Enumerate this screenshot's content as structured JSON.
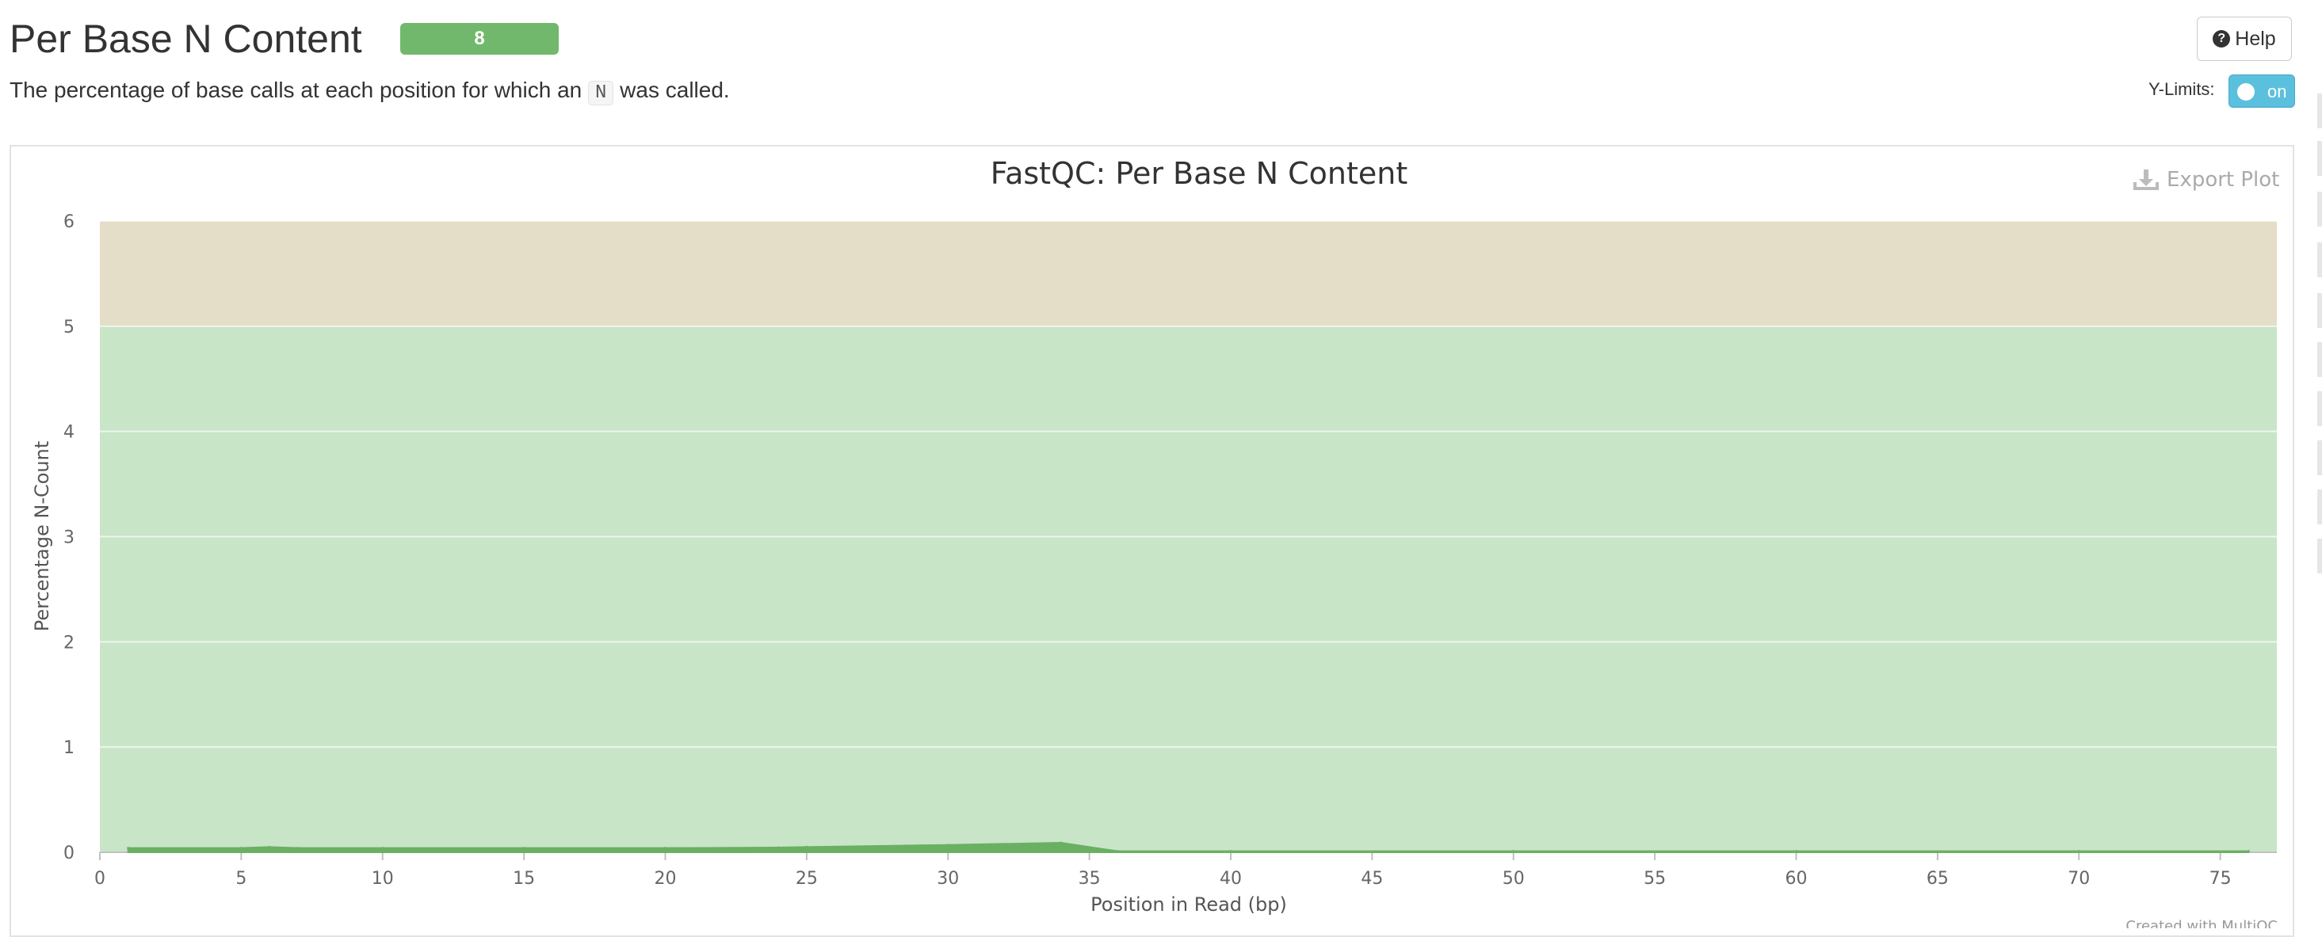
{
  "section": {
    "title": "Per Base N Content",
    "badge_count": "8",
    "description_before": "The percentage of base calls at each position for which an ",
    "description_code": "N",
    "description_after": " was called."
  },
  "controls": {
    "help_label": "Help",
    "ylimits_label": "Y-Limits:",
    "ylimits_toggle": "on",
    "export_label": "Export Plot"
  },
  "colors": {
    "pass_band": "#c9e5c8",
    "warn_band": "#e4ddc7",
    "series_fill": "#6ab063",
    "badge": "#72b86c",
    "toggle": "#5bc0de"
  },
  "chart_data": {
    "type": "area",
    "title": "FastQC: Per Base N Content",
    "xlabel": "Position in Read (bp)",
    "ylabel": "Percentage N-Count",
    "xlim": [
      0,
      77
    ],
    "ylim": [
      0,
      6
    ],
    "xticks": [
      0,
      5,
      10,
      15,
      20,
      25,
      30,
      35,
      40,
      45,
      50,
      55,
      60,
      65,
      70,
      75
    ],
    "yticks": [
      0,
      1,
      2,
      3,
      4,
      5,
      6
    ],
    "bands": [
      {
        "from": 0,
        "to": 5,
        "color": "#c9e5c8"
      },
      {
        "from": 5,
        "to": 6,
        "color": "#e4ddc7"
      }
    ],
    "series": [
      {
        "color": "#6ab063",
        "x": [
          1,
          5,
          6,
          7,
          10,
          15,
          20,
          24,
          25,
          30,
          34,
          36,
          40,
          50,
          60,
          70,
          76
        ],
        "y": [
          0.04,
          0.04,
          0.05,
          0.04,
          0.04,
          0.04,
          0.04,
          0.045,
          0.05,
          0.07,
          0.09,
          0.01,
          0.01,
          0.01,
          0.01,
          0.01,
          0.01
        ]
      }
    ],
    "credit": "Created with MultiQC"
  }
}
